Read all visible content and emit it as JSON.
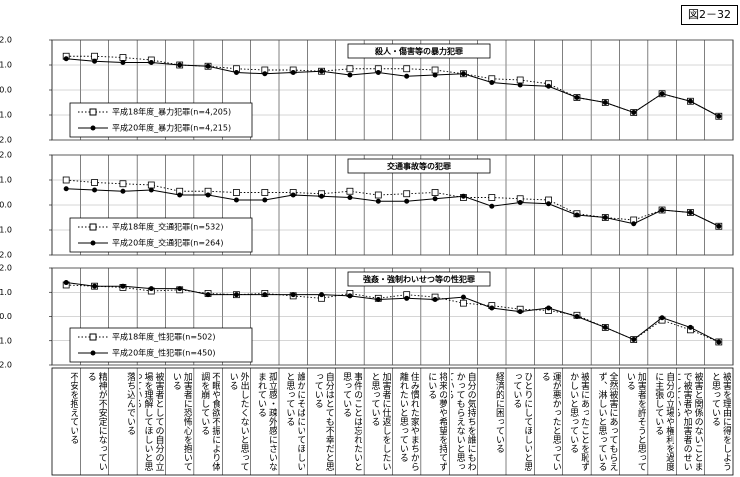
{
  "figure_label": "図2－32",
  "chart_data": [
    {
      "type": "line",
      "title": "殺人・傷害等の暴力犯罪",
      "ylim": [
        -2,
        2
      ],
      "yticks": [
        {
          "value": 2,
          "label": "2.0"
        },
        {
          "value": 1,
          "label": "1.0"
        },
        {
          "value": 0,
          "label": "0.0"
        },
        {
          "value": -1,
          "label": "-1.0"
        },
        {
          "value": -2,
          "label": "-2.0"
        }
      ],
      "grid": true,
      "series": [
        {
          "name": "平成18年度_暴力犯罪(n=4,205)",
          "color": "#000000",
          "values": [
            1.35,
            1.35,
            1.3,
            1.2,
            1.0,
            0.95,
            0.85,
            0.8,
            0.8,
            0.75,
            0.85,
            0.85,
            0.85,
            0.8,
            0.65,
            0.45,
            0.4,
            0.25,
            -0.3,
            -0.5,
            -0.9,
            -0.15,
            -0.45,
            -1.05
          ]
        },
        {
          "name": "平成20年度_暴力犯罪(n=4,215)",
          "color": "#000000",
          "values": [
            1.25,
            1.15,
            1.1,
            1.1,
            1.0,
            0.95,
            0.7,
            0.65,
            0.7,
            0.75,
            0.6,
            0.7,
            0.55,
            0.6,
            0.65,
            0.3,
            0.2,
            0.15,
            -0.3,
            -0.5,
            -0.9,
            -0.15,
            -0.45,
            -1.05
          ]
        }
      ]
    },
    {
      "type": "line",
      "title": "交通事故等の犯罪",
      "ylim": [
        -2,
        2
      ],
      "yticks": [
        {
          "value": 2,
          "label": "2.0"
        },
        {
          "value": 1,
          "label": "1.0"
        },
        {
          "value": 0,
          "label": "0.0"
        },
        {
          "value": -1,
          "label": "-1.0"
        },
        {
          "value": -2,
          "label": "-2.0"
        }
      ],
      "grid": true,
      "series": [
        {
          "name": "平成18年度_交通犯罪(n=532)",
          "color": "#000000",
          "values": [
            1.0,
            0.9,
            0.85,
            0.8,
            0.55,
            0.55,
            0.5,
            0.5,
            0.5,
            0.45,
            0.55,
            0.4,
            0.45,
            0.5,
            0.3,
            0.3,
            0.25,
            0.2,
            -0.35,
            -0.5,
            -0.6,
            -0.2,
            -0.3,
            -0.85
          ]
        },
        {
          "name": "平成20年度_交通犯罪(n=264)",
          "color": "#000000",
          "values": [
            0.65,
            0.6,
            0.55,
            0.6,
            0.4,
            0.4,
            0.2,
            0.2,
            0.4,
            0.35,
            0.3,
            0.15,
            0.15,
            0.25,
            0.35,
            -0.05,
            0.1,
            0.05,
            -0.4,
            -0.5,
            -0.75,
            -0.2,
            -0.3,
            -0.85
          ]
        }
      ]
    },
    {
      "type": "line",
      "title": "強姦・強制わいせつ等の性犯罪",
      "ylim": [
        -2,
        2
      ],
      "yticks": [
        {
          "value": 2,
          "label": "2.0"
        },
        {
          "value": 1,
          "label": "1.0"
        },
        {
          "value": 0,
          "label": "0.0"
        },
        {
          "value": -1,
          "label": "-1.0"
        },
        {
          "value": -2,
          "label": "-2.0"
        }
      ],
      "grid": true,
      "categories": [
        "不安を抱えている",
        "精神が不安定になっている",
        "落ち込んでいる",
        "被害者としての自分の立場を理解してほしいと思っている",
        "加害者に恐怖心を抱いている",
        "不眠や食欲不振により体調を崩している",
        "外出したくないと思っている",
        "孤立感・疎外感にさいなまれている",
        "誰かにそばにいてほしいと思っている",
        "自分はとても不幸だと思っている",
        "事件のことは忘れたいと思っている",
        "加害者に仕返しをしたいと思っている",
        "住み慣れた家やまちから離れたいと思っている",
        "将来の夢や希望を持てずにいる",
        "自分の気持ちを誰にもわかってもらえないと思っている",
        "経済的に困っている",
        "ひとりにしてほしいと思っている",
        "運が悪かったと思っている",
        "被害にあったことを恥ずかしいと思っている",
        "全然被害にあってもらえず、淋しいと思っている",
        "加害者を許そうと思っている",
        "自分の立場や権利を過度に主張している",
        "被害と関係のないことまで被害者や加害者のせいにしている",
        "被害を理由に得をしようと思っている"
      ],
      "series": [
        {
          "name": "平成18年度_性犯罪(n=502)",
          "color": "#000000",
          "values": [
            1.3,
            1.25,
            1.2,
            1.05,
            1.1,
            0.95,
            0.9,
            0.95,
            0.85,
            0.75,
            0.95,
            0.75,
            0.9,
            0.8,
            0.55,
            0.45,
            0.3,
            0.25,
            0.05,
            -0.45,
            -0.95,
            -0.15,
            -0.55,
            -1.05
          ]
        },
        {
          "name": "平成20年度_性犯罪(n=450)",
          "color": "#000000",
          "values": [
            1.4,
            1.25,
            1.25,
            1.15,
            1.15,
            0.9,
            0.9,
            0.9,
            0.9,
            0.9,
            0.85,
            0.7,
            0.75,
            0.7,
            0.8,
            0.35,
            0.2,
            0.35,
            0.0,
            -0.45,
            -0.95,
            -0.05,
            -0.45,
            -1.05
          ]
        }
      ]
    }
  ]
}
